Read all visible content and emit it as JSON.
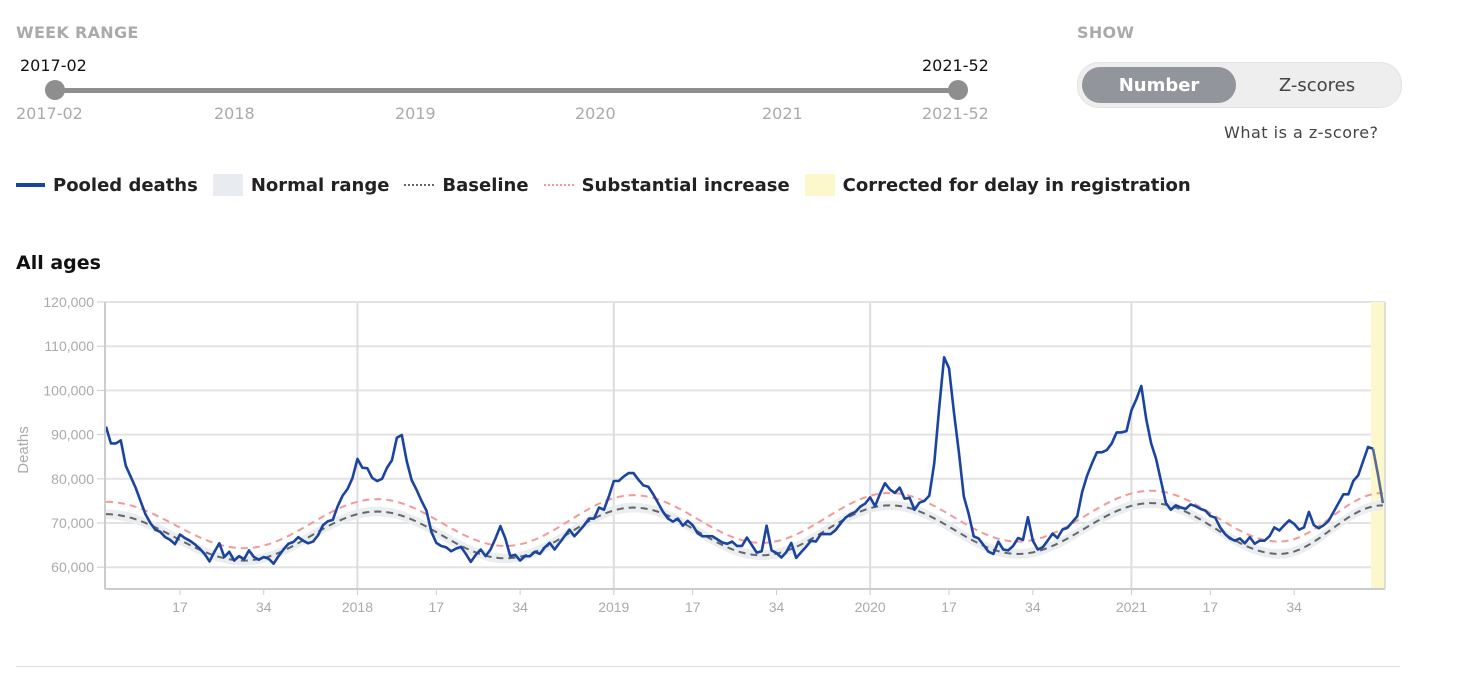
{
  "week_range": {
    "label": "WEEK RANGE",
    "start_value": "2017-02",
    "end_value": "2021-52",
    "ticks": [
      "2017-02",
      "2018",
      "2019",
      "2020",
      "2021",
      "2021-52"
    ]
  },
  "show": {
    "label": "SHOW",
    "options": [
      "Number",
      "Z-scores"
    ],
    "selected": "Number",
    "help_link": "What is a z-score?"
  },
  "legend": {
    "items": [
      "Pooled deaths",
      "Normal range",
      "Baseline",
      "Substantial increase",
      "Corrected for delay in registration"
    ]
  },
  "colors": {
    "pooled": "#1a44a0",
    "pooled_corrected": "#566c94",
    "normal_range": "#e8ecf0",
    "baseline": "#666666",
    "substantial": "#f29a9a",
    "corrected": "#fdf7cc"
  },
  "panel_title": "All ages",
  "chart_data": {
    "type": "line",
    "ylabel": "Deaths",
    "xlabel": "",
    "ylim": [
      55000,
      120000
    ],
    "yticks": [
      60000,
      70000,
      80000,
      90000,
      100000,
      110000,
      120000
    ],
    "ytick_labels": [
      "60,000",
      "70,000",
      "80,000",
      "90,000",
      "100,000",
      "110,000",
      "120,000"
    ],
    "xtick_labels": [
      {
        "week": "2017-17",
        "label": "17"
      },
      {
        "week": "2017-34",
        "label": "34"
      },
      {
        "week": "2018-01",
        "label": "2018"
      },
      {
        "week": "2018-17",
        "label": "17"
      },
      {
        "week": "2018-34",
        "label": "34"
      },
      {
        "week": "2019-01",
        "label": "2019"
      },
      {
        "week": "2019-17",
        "label": "17"
      },
      {
        "week": "2019-34",
        "label": "34"
      },
      {
        "week": "2020-01",
        "label": "2020"
      },
      {
        "week": "2020-17",
        "label": "17"
      },
      {
        "week": "2020-34",
        "label": "34"
      },
      {
        "week": "2021-01",
        "label": "2021"
      },
      {
        "week": "2021-17",
        "label": "17"
      },
      {
        "week": "2021-34",
        "label": "34"
      }
    ],
    "grid": true,
    "x_start": "2017-02",
    "x_end": "2021-52",
    "corrected_from": "2021-50",
    "series": [
      {
        "name": "Pooled deaths",
        "values": [
          91800,
          88000,
          88000,
          88700,
          83000,
          80500,
          78000,
          75000,
          72000,
          70000,
          68500,
          68000,
          66800,
          66200,
          65200,
          67400,
          66600,
          66000,
          65200,
          64200,
          63000,
          61300,
          63500,
          65400,
          62300,
          63500,
          61500,
          62500,
          61800,
          63800,
          62300,
          61700,
          62300,
          61900,
          60800,
          62500,
          64000,
          65300,
          65700,
          66800,
          66000,
          65400,
          65800,
          67200,
          69500,
          70400,
          70700,
          73800,
          76200,
          77700,
          80200,
          84500,
          82500,
          82400,
          80200,
          79500,
          80000,
          82500,
          84200,
          89300,
          89900,
          84000,
          79700,
          77500,
          75000,
          72800,
          68000,
          65500,
          64800,
          64500,
          63600,
          64200,
          64600,
          63000,
          61200,
          62800,
          64000,
          62500,
          64000,
          66500,
          69300,
          66500,
          62500,
          62800,
          61500,
          62500,
          62500,
          63500,
          63000,
          64500,
          65500,
          64000,
          65500,
          67000,
          68500,
          67000,
          68200,
          69500,
          71000,
          71000,
          73500,
          73000,
          76000,
          79500,
          79500,
          80500,
          81300,
          81300,
          79800,
          78500,
          78200,
          76500,
          74500,
          72500,
          71000,
          70300,
          71000,
          69400,
          70500,
          69500,
          67700,
          67000,
          67000,
          67000,
          66300,
          65600,
          65300,
          65800,
          64800,
          64800,
          66700,
          65000,
          63300,
          63600,
          69400,
          63800,
          63200,
          62200,
          63400,
          65500,
          62100,
          63400,
          64600,
          66000,
          65800,
          67500,
          67500,
          67500,
          68400,
          69900,
          71200,
          72000,
          72500,
          73700,
          74400,
          75800,
          73800,
          76600,
          79000,
          77600,
          76800,
          78000,
          75500,
          75700,
          73000,
          74600,
          75000,
          76200,
          83500,
          96000,
          107500,
          105000,
          95000,
          86000,
          76000,
          72000,
          67000,
          66500,
          65000,
          63500,
          63000,
          65800,
          64000,
          63800,
          64800,
          66600,
          66200,
          71300,
          66000,
          64000,
          64500,
          66000,
          67600,
          66600,
          68500,
          68900,
          70200,
          71500,
          77000,
          80700,
          83500,
          86000,
          86000,
          86500,
          88000,
          90500,
          90500,
          90800,
          95500,
          98000,
          101000,
          93500,
          88000,
          84500,
          79500,
          74500,
          73000,
          74000,
          73500,
          73200,
          74200,
          73800,
          73200,
          72800,
          71600,
          71200,
          69000,
          67500,
          66500,
          66000,
          66500,
          65400,
          66800,
          65300,
          66000,
          66000,
          67000,
          69000,
          68300,
          69500,
          70600,
          69800,
          68500,
          69000,
          72500,
          69500,
          68800,
          69500,
          70500,
          72500,
          74500,
          76500,
          76500,
          79500,
          80800,
          84000,
          87200,
          86800,
          81000,
          74500
        ]
      },
      {
        "name": "Baseline",
        "points": [
          {
            "week": "2017-02",
            "value": 72000
          },
          {
            "week": "2017-30",
            "value": 61500
          },
          {
            "week": "2018-05",
            "value": 72600
          },
          {
            "week": "2018-31",
            "value": 62000
          },
          {
            "week": "2019-05",
            "value": 73500
          },
          {
            "week": "2019-31",
            "value": 62700
          },
          {
            "week": "2020-05",
            "value": 74000
          },
          {
            "week": "2020-31",
            "value": 63000
          },
          {
            "week": "2021-05",
            "value": 74500
          },
          {
            "week": "2021-31",
            "value": 63000
          },
          {
            "week": "2021-52",
            "value": 74000
          }
        ]
      },
      {
        "name": "Normal range",
        "band_halfwidth": 1100
      },
      {
        "name": "Substantial increase",
        "offset_from_baseline": 2800
      }
    ]
  }
}
